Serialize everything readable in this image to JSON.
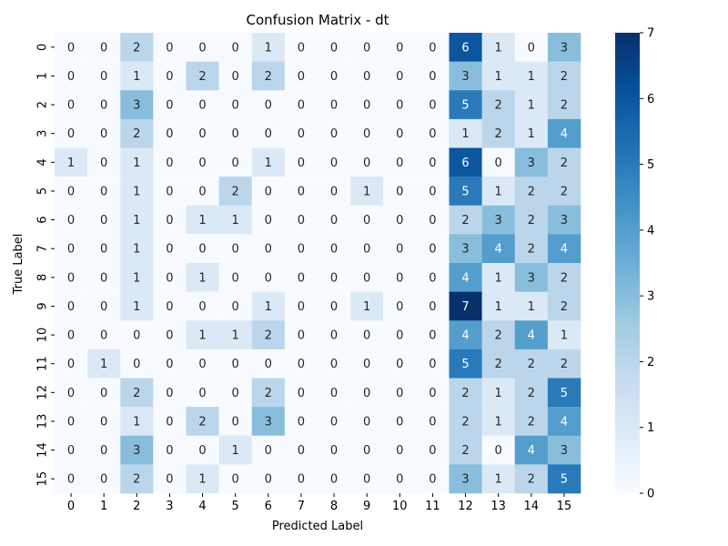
{
  "chart_data": {
    "type": "heatmap",
    "title": "Confusion Matrix - dt",
    "xlabel": "Predicted Label",
    "ylabel": "True Label",
    "x_categories": [
      "0",
      "1",
      "2",
      "3",
      "4",
      "5",
      "6",
      "7",
      "8",
      "9",
      "10",
      "11",
      "12",
      "13",
      "14",
      "15"
    ],
    "y_categories": [
      "0",
      "1",
      "2",
      "3",
      "4",
      "5",
      "6",
      "7",
      "8",
      "9",
      "10",
      "11",
      "12",
      "13",
      "14",
      "15"
    ],
    "values": [
      [
        0,
        0,
        2,
        0,
        0,
        0,
        1,
        0,
        0,
        0,
        0,
        0,
        6,
        1,
        0,
        3
      ],
      [
        0,
        0,
        1,
        0,
        2,
        0,
        2,
        0,
        0,
        0,
        0,
        0,
        3,
        1,
        1,
        2
      ],
      [
        0,
        0,
        3,
        0,
        0,
        0,
        0,
        0,
        0,
        0,
        0,
        0,
        5,
        2,
        1,
        2
      ],
      [
        0,
        0,
        2,
        0,
        0,
        0,
        0,
        0,
        0,
        0,
        0,
        0,
        1,
        2,
        1,
        4
      ],
      [
        1,
        0,
        1,
        0,
        0,
        0,
        1,
        0,
        0,
        0,
        0,
        0,
        6,
        0,
        3,
        2
      ],
      [
        0,
        0,
        1,
        0,
        0,
        2,
        0,
        0,
        0,
        1,
        0,
        0,
        5,
        1,
        2,
        2
      ],
      [
        0,
        0,
        1,
        0,
        1,
        1,
        0,
        0,
        0,
        0,
        0,
        0,
        2,
        3,
        2,
        3
      ],
      [
        0,
        0,
        1,
        0,
        0,
        0,
        0,
        0,
        0,
        0,
        0,
        0,
        3,
        4,
        2,
        4
      ],
      [
        0,
        0,
        1,
        0,
        1,
        0,
        0,
        0,
        0,
        0,
        0,
        0,
        4,
        1,
        3,
        2
      ],
      [
        0,
        0,
        1,
        0,
        0,
        0,
        1,
        0,
        0,
        1,
        0,
        0,
        7,
        1,
        1,
        2
      ],
      [
        0,
        0,
        0,
        0,
        1,
        1,
        2,
        0,
        0,
        0,
        0,
        0,
        4,
        2,
        4,
        1
      ],
      [
        0,
        1,
        0,
        0,
        0,
        0,
        0,
        0,
        0,
        0,
        0,
        0,
        5,
        2,
        2,
        2
      ],
      [
        0,
        0,
        2,
        0,
        0,
        0,
        2,
        0,
        0,
        0,
        0,
        0,
        2,
        1,
        2,
        5
      ],
      [
        0,
        0,
        1,
        0,
        2,
        0,
        3,
        0,
        0,
        0,
        0,
        0,
        2,
        1,
        2,
        4
      ],
      [
        0,
        0,
        3,
        0,
        0,
        1,
        0,
        0,
        0,
        0,
        0,
        0,
        2,
        0,
        4,
        3
      ],
      [
        0,
        0,
        2,
        0,
        1,
        0,
        0,
        0,
        0,
        0,
        0,
        0,
        3,
        1,
        2,
        5
      ]
    ],
    "colorbar": {
      "min": 0,
      "max": 7,
      "ticks": [
        0,
        1,
        2,
        3,
        4,
        5,
        6,
        7
      ]
    },
    "colormap": "Blues",
    "annotations": true
  }
}
